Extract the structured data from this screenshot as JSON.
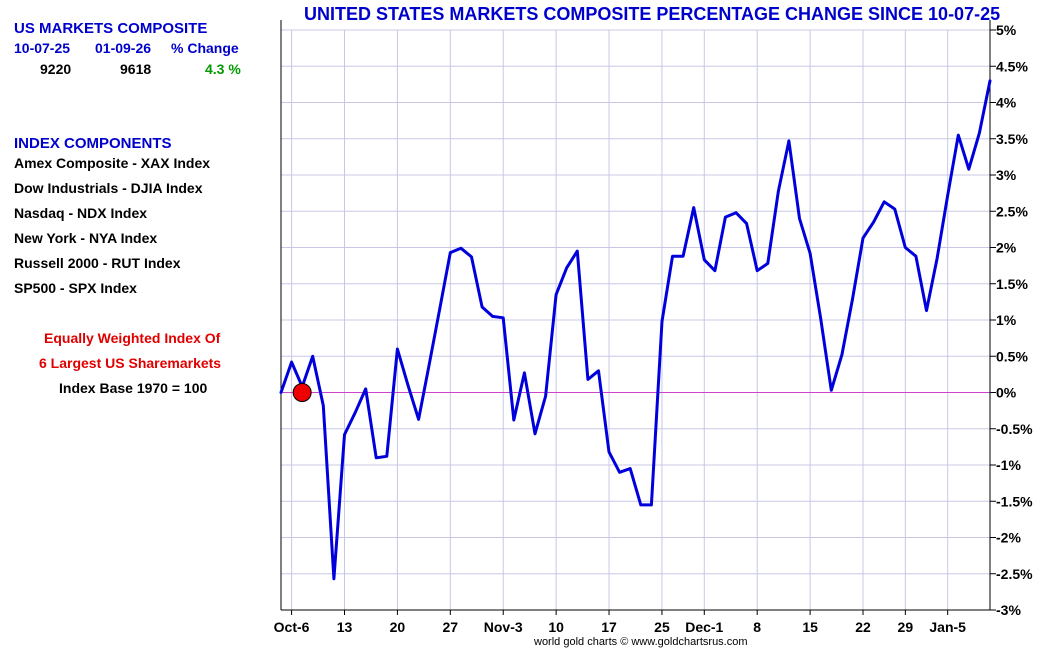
{
  "summary": {
    "title": "US MARKETS COMPOSITE",
    "headers": [
      "10-07-25",
      "01-09-26",
      "% Change"
    ],
    "values": [
      "9220",
      "9618",
      "4.3 %"
    ]
  },
  "components": {
    "title": "INDEX COMPONENTS",
    "items": [
      "Amex Composite - XAX Index",
      "Dow Industrials - DJIA Index",
      "Nasdaq - NDX Index",
      "New York - NYA Index",
      "Russell 2000 - RUT Index",
      "SP500 - SPX Index"
    ]
  },
  "notes": {
    "line1": "Equally Weighted Index Of",
    "line2": "6 Largest US Sharemarkets",
    "line3": "Index Base 1970 = 100"
  },
  "credit": "world gold charts © www.goldchartsrus.com",
  "colors": {
    "line": "#0000dd",
    "grid": "#c8c8e6",
    "zero_line": "#cc44cc",
    "marker": "#ee0000",
    "title": "#0000cc",
    "positive": "#009900"
  },
  "chart_data": {
    "type": "line",
    "title": "UNITED STATES MARKETS COMPOSITE PERCENTAGE CHANGE SINCE 10-07-25",
    "y_axis_side": "right",
    "ylim": [
      -3,
      5
    ],
    "y_ticks": [
      5,
      4.5,
      4,
      3.5,
      3,
      2.5,
      2,
      1.5,
      1,
      0.5,
      0,
      -0.5,
      -1,
      -1.5,
      -2,
      -2.5,
      -3
    ],
    "y_tick_labels": [
      "5%",
      "4.5%",
      "4%",
      "3.5%",
      "3%",
      "2.5%",
      "2%",
      "1.5%",
      "1%",
      "0.5%",
      "0%",
      "-0.5%",
      "-1%",
      "-1.5%",
      "-2%",
      "-2.5%",
      "-3%"
    ],
    "x_ticks": [
      {
        "label": "Oct-6",
        "index": 1
      },
      {
        "label": "13",
        "index": 6
      },
      {
        "label": "20",
        "index": 11
      },
      {
        "label": "27",
        "index": 16
      },
      {
        "label": "Nov-3",
        "index": 21
      },
      {
        "label": "10",
        "index": 26
      },
      {
        "label": "17",
        "index": 31
      },
      {
        "label": "25",
        "index": 36
      },
      {
        "label": "Dec-1",
        "index": 40
      },
      {
        "label": "8",
        "index": 45
      },
      {
        "label": "15",
        "index": 50
      },
      {
        "label": "22",
        "index": 55
      },
      {
        "label": "29",
        "index": 59
      },
      {
        "label": "Jan-5",
        "index": 63
      }
    ],
    "start_marker": {
      "index": 2,
      "value": 0
    },
    "grid": true,
    "series": [
      {
        "values": [
          0,
          0.42,
          0.08,
          0.5,
          -0.18,
          -2.57,
          -0.58,
          -0.28,
          0.05,
          -0.9,
          -0.88,
          0.6,
          0.1,
          -0.37,
          0.38,
          1.15,
          1.93,
          1.99,
          1.87,
          1.18,
          1.05,
          1.03,
          -0.38,
          0.27,
          -0.57,
          -0.05,
          1.35,
          1.72,
          1.95,
          0.18,
          0.3,
          -0.82,
          -1.1,
          -1.05,
          -1.55,
          -1.55,
          0.98,
          1.88,
          1.88,
          2.55,
          1.83,
          1.68,
          2.42,
          2.48,
          2.33,
          1.68,
          1.78,
          2.78,
          3.47,
          2.4,
          1.92,
          1.02,
          0.03,
          0.52,
          1.28,
          2.13,
          2.35,
          2.63,
          2.53,
          2.0,
          1.88,
          1.13,
          1.85,
          2.72,
          3.55,
          3.08,
          3.58,
          4.3
        ]
      }
    ]
  }
}
